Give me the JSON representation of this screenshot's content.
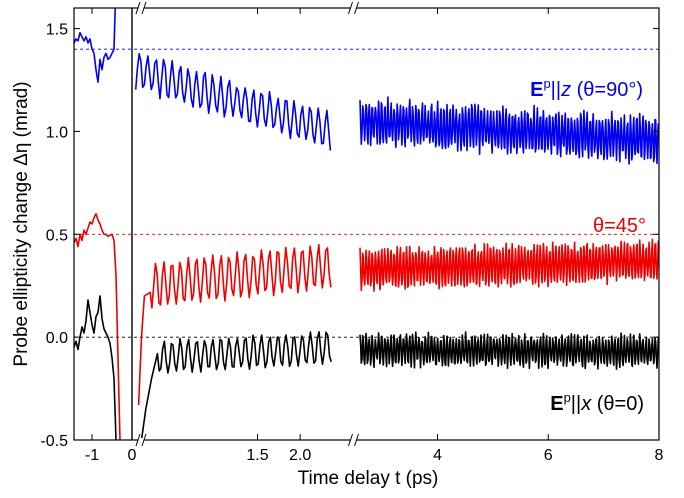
{
  "chart_data": {
    "type": "line",
    "xlabel": "Time delay t  (ps)",
    "ylabel": "Probe ellipticity change  Δη  (mrad)",
    "ylim": [
      -0.5,
      1.6
    ],
    "y_ticks": [
      {
        "value": -0.5,
        "label": "-0.5"
      },
      {
        "value": 0.0,
        "label": "0.0"
      },
      {
        "value": 0.5,
        "label": "0.5"
      },
      {
        "value": 1.0,
        "label": "1.0"
      },
      {
        "value": 1.5,
        "label": "1.5"
      }
    ],
    "x_segments": [
      {
        "xlim": [
          -1.45,
          0.05
        ],
        "ticks": [
          {
            "value": -1,
            "label": "-1"
          },
          {
            "value": 0,
            "label": "0"
          }
        ]
      },
      {
        "xlim": [
          0.05,
          2.55
        ],
        "ticks": [
          {
            "value": 1.5,
            "label": "1.5"
          },
          {
            "value": 2.0,
            "label": "2.0"
          }
        ]
      },
      {
        "xlim": [
          2.6,
          8.0
        ],
        "ticks": [
          {
            "value": 4,
            "label": "4"
          },
          {
            "value": 6,
            "label": "6"
          },
          {
            "value": 8,
            "label": "8"
          }
        ]
      }
    ],
    "series": [
      {
        "color": "#0000ee",
        "baseline": 1.4,
        "pre": [
          [
            -1.45,
            1.43
          ],
          [
            -1.4,
            1.45
          ],
          [
            -1.35,
            1.44
          ],
          [
            -1.3,
            1.48
          ],
          [
            -1.25,
            1.46
          ],
          [
            -1.2,
            1.44
          ],
          [
            -1.15,
            1.46
          ],
          [
            -1.1,
            1.43
          ],
          [
            -1.05,
            1.45
          ],
          [
            -1.0,
            1.4
          ],
          [
            -0.95,
            1.38
          ],
          [
            -0.9,
            1.3
          ],
          [
            -0.85,
            1.24
          ],
          [
            -0.8,
            1.35
          ],
          [
            -0.75,
            1.3
          ],
          [
            -0.7,
            1.36
          ],
          [
            -0.65,
            1.38
          ],
          [
            -0.6,
            1.35
          ],
          [
            -0.55,
            1.36
          ],
          [
            -0.5,
            1.38
          ],
          [
            -0.45,
            1.4
          ],
          [
            -0.42,
            1.6
          ]
        ],
        "post": {
          "x0": 0.1,
          "x1": 1.45,
          "y0": 1.3,
          "y_end": 1.0,
          "amp": 0.09,
          "freq": 17.8,
          "noise": 0.03,
          "seed": 3
        },
        "late": {
          "x0": 2.6,
          "x1": 8.0,
          "y0": 1.05,
          "y_end": 0.96,
          "amp": 0.1,
          "freq": 17.8,
          "noise": 0.06,
          "seed": 7
        }
      },
      {
        "color": "#ee0000",
        "baseline": 0.5,
        "pre": [
          [
            -1.45,
            0.46
          ],
          [
            -1.4,
            0.48
          ],
          [
            -1.35,
            0.44
          ],
          [
            -1.3,
            0.5
          ],
          [
            -1.25,
            0.47
          ],
          [
            -1.2,
            0.52
          ],
          [
            -1.15,
            0.5
          ],
          [
            -1.1,
            0.53
          ],
          [
            -1.05,
            0.56
          ],
          [
            -1.0,
            0.55
          ],
          [
            -0.95,
            0.58
          ],
          [
            -0.9,
            0.6
          ],
          [
            -0.85,
            0.57
          ],
          [
            -0.8,
            0.55
          ],
          [
            -0.75,
            0.52
          ],
          [
            -0.7,
            0.5
          ],
          [
            -0.65,
            0.5
          ],
          [
            -0.6,
            0.49
          ],
          [
            -0.5,
            0.5
          ],
          [
            -0.45,
            0.47
          ],
          [
            -0.4,
            0.3
          ],
          [
            -0.35,
            -0.1
          ],
          [
            -0.3,
            -0.5
          ]
        ],
        "post": {
          "x0": 0.2,
          "x1": 1.45,
          "y0": 0.25,
          "y_end": 0.35,
          "amp": 0.11,
          "freq": 17.8,
          "noise": 0.02,
          "seed": 5
        },
        "late": {
          "x0": 2.6,
          "x1": 8.0,
          "y0": 0.33,
          "y_end": 0.37,
          "amp": 0.09,
          "freq": 17.8,
          "noise": 0.04,
          "seed": 11
        },
        "post_prefix": [
          [
            0.12,
            -0.33
          ],
          [
            0.14,
            0.0
          ],
          [
            0.16,
            0.2
          ]
        ]
      },
      {
        "color": "#000000",
        "baseline": 0.0,
        "pre": [
          [
            -1.45,
            -0.05
          ],
          [
            -1.4,
            -0.02
          ],
          [
            -1.35,
            -0.06
          ],
          [
            -1.3,
            0.0
          ],
          [
            -1.25,
            0.05
          ],
          [
            -1.2,
            0.02
          ],
          [
            -1.15,
            0.08
          ],
          [
            -1.1,
            0.18
          ],
          [
            -1.05,
            0.12
          ],
          [
            -1.0,
            0.06
          ],
          [
            -0.95,
            0.02
          ],
          [
            -0.9,
            0.1
          ],
          [
            -0.85,
            0.12
          ],
          [
            -0.8,
            0.2
          ],
          [
            -0.75,
            0.09
          ],
          [
            -0.7,
            0.04
          ],
          [
            -0.65,
            0.02
          ],
          [
            -0.6,
            0.0
          ],
          [
            -0.55,
            -0.03
          ],
          [
            -0.5,
            -0.1
          ],
          [
            -0.45,
            -0.2
          ],
          [
            -0.4,
            -0.5
          ]
        ],
        "post": {
          "x0": 0.25,
          "x1": 1.45,
          "y0": -0.1,
          "y_end": -0.05,
          "amp": 0.08,
          "freq": 17.8,
          "noise": 0.02,
          "seed": 9
        },
        "late": {
          "x0": 2.6,
          "x1": 8.0,
          "y0": -0.06,
          "y_end": -0.07,
          "amp": 0.07,
          "freq": 17.8,
          "noise": 0.04,
          "seed": 13
        },
        "post_prefix": [
          [
            0.14,
            -0.5
          ],
          [
            0.17,
            -0.35
          ],
          [
            0.21,
            -0.2
          ]
        ]
      }
    ],
    "annotations": [
      {
        "prefix": "E",
        "sup": "p",
        "mid": "||",
        "italic": "z",
        "suffix": " (θ=90°)",
        "color": "#0000ee"
      },
      {
        "text": "θ=45°",
        "color": "#ee0000"
      },
      {
        "prefix": "E",
        "sup": "p",
        "mid": "||",
        "italic": "x",
        "suffix": " (θ=0)",
        "color": "#000000"
      }
    ]
  }
}
